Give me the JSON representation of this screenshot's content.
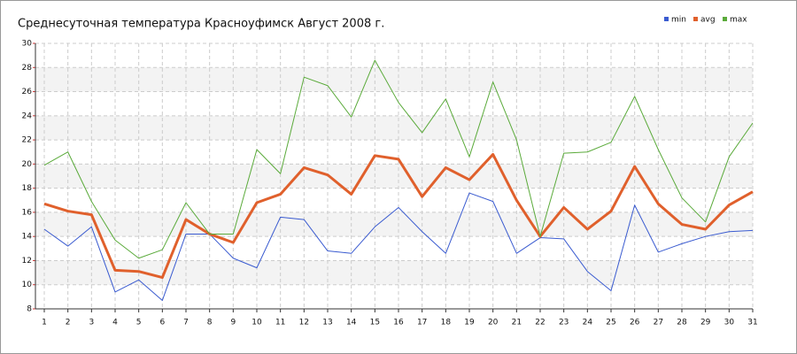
{
  "chart_data": {
    "type": "line",
    "title": "Среднесуточная температура Красноуфимск  Август 2008 г.",
    "x": [
      1,
      2,
      3,
      4,
      5,
      6,
      7,
      8,
      9,
      10,
      11,
      12,
      13,
      14,
      15,
      16,
      17,
      18,
      19,
      20,
      21,
      22,
      23,
      24,
      25,
      26,
      27,
      28,
      29,
      30,
      31
    ],
    "xlim": [
      1,
      31
    ],
    "xticks": [
      1,
      2,
      3,
      4,
      5,
      6,
      7,
      8,
      9,
      10,
      11,
      12,
      13,
      14,
      15,
      16,
      17,
      18,
      19,
      20,
      21,
      22,
      23,
      24,
      25,
      26,
      27,
      28,
      29,
      30,
      31
    ],
    "ylim": [
      8,
      30
    ],
    "yticks": [
      8,
      10,
      12,
      14,
      16,
      18,
      20,
      22,
      24,
      26,
      28,
      30
    ],
    "grid": true,
    "legend": "top-right",
    "series": [
      {
        "name": "min",
        "color": "#3a5bd0",
        "values": [
          14.6,
          13.2,
          14.8,
          9.4,
          10.4,
          8.7,
          14.2,
          14.2,
          12.2,
          11.4,
          15.6,
          15.4,
          12.8,
          12.6,
          14.8,
          16.4,
          14.4,
          12.6,
          17.6,
          16.9,
          12.6,
          13.9,
          13.8,
          11.1,
          9.5,
          16.6,
          12.7,
          13.4,
          14.0,
          14.4,
          14.5
        ]
      },
      {
        "name": "avg",
        "color": "#e0602c",
        "values": [
          16.7,
          16.1,
          15.8,
          11.2,
          11.1,
          10.6,
          15.4,
          14.2,
          13.5,
          16.8,
          17.5,
          19.7,
          19.1,
          17.5,
          20.7,
          20.4,
          17.3,
          19.7,
          18.7,
          20.8,
          17.0,
          14.0,
          16.4,
          14.6,
          16.1,
          19.8,
          16.7,
          15.0,
          14.6,
          16.6,
          17.7
        ]
      },
      {
        "name": "max",
        "color": "#5aaa3a",
        "values": [
          19.9,
          21.0,
          16.9,
          13.7,
          12.2,
          12.9,
          16.8,
          14.2,
          14.2,
          21.2,
          19.2,
          27.2,
          26.5,
          23.9,
          28.6,
          25.1,
          22.6,
          25.4,
          20.6,
          26.8,
          22.0,
          14.0,
          20.9,
          21.0,
          21.8,
          25.6,
          21.2,
          17.2,
          15.2,
          20.6,
          23.4
        ]
      }
    ]
  }
}
